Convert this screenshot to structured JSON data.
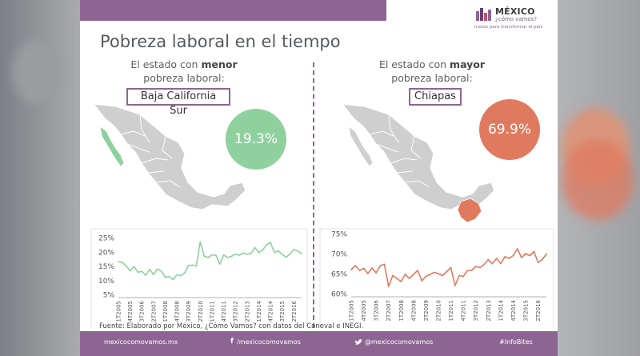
{
  "colors": {
    "purple": "#8c6592",
    "green": "#8fd19e",
    "orange": "#e07a5f",
    "map_gray": "#cfcfcf"
  },
  "logo": {
    "name": "MÉXICO",
    "tagline": "¿cómo vamos?",
    "slogan": "metas para transformar el país"
  },
  "title": "Pobreza laboral en el tiempo",
  "left": {
    "subtitle_pre": "El estado con",
    "subtitle_bold": "menor",
    "subtitle_post": "pobreza laboral:",
    "state": "Baja California Sur",
    "value": "19.3%"
  },
  "right": {
    "subtitle_pre": "El estado con",
    "subtitle_bold": "mayor",
    "subtitle_post": "pobreza laboral:",
    "state": "Chiapas",
    "value": "69.9%"
  },
  "chart_data": [
    {
      "type": "line",
      "categories": [
        "1T2005",
        "4T2005",
        "3T2006",
        "2T2007",
        "1T2008",
        "4T2008",
        "3T2009",
        "2T2010",
        "1T2011",
        "4T2011",
        "3T2012",
        "2T2013",
        "1T2014",
        "4T2014",
        "3T2015",
        "2T2016"
      ],
      "x": [
        "1T2005",
        "2T2005",
        "3T2005",
        "4T2005",
        "1T2006",
        "2T2006",
        "3T2006",
        "4T2006",
        "1T2007",
        "2T2007",
        "3T2007",
        "4T2007",
        "1T2008",
        "2T2008",
        "3T2008",
        "4T2008",
        "1T2009",
        "2T2009",
        "3T2009",
        "4T2009",
        "1T2010",
        "2T2010",
        "3T2010",
        "4T2010",
        "1T2011",
        "2T2011",
        "3T2011",
        "4T2011",
        "1T2012",
        "2T2012",
        "3T2012",
        "4T2012",
        "1T2013",
        "2T2013",
        "3T2013",
        "4T2013",
        "1T2014",
        "2T2014",
        "3T2014",
        "4T2014",
        "1T2015",
        "2T2015",
        "3T2015",
        "4T2015",
        "1T2016",
        "2T2016",
        "3T2016",
        "4T2016"
      ],
      "series": [
        {
          "values": [
            16.5,
            16.3,
            15.0,
            13.3,
            14.8,
            12.8,
            13.1,
            11.8,
            13.8,
            12.0,
            13.9,
            13.2,
            11.0,
            11.3,
            10.2,
            11.9,
            11.6,
            12.6,
            15.2,
            15.3,
            15.0,
            23.5,
            18.5,
            18.0,
            18.9,
            18.8,
            15.7,
            18.9,
            18.0,
            18.4,
            19.2,
            18.8,
            19.5,
            19.2,
            19.4,
            21.5,
            19.8,
            20.6,
            22.5,
            23.3,
            19.8,
            20.3,
            19.2,
            18.1,
            19.2,
            20.8,
            20.3,
            19.3
          ]
        }
      ],
      "yticks": [
        "25%",
        "20%",
        "15%",
        "10%",
        "5%"
      ],
      "ylim": [
        5,
        25
      ]
    },
    {
      "type": "line",
      "categories": [
        "1T2005",
        "4T2005",
        "3T2006",
        "2T2007",
        "1T2008",
        "4T2008",
        "3T2009",
        "2T2010",
        "1T2011",
        "4T2011",
        "3T2012",
        "2T2013",
        "1T2014",
        "4T2014",
        "3T2015",
        "2T2016"
      ],
      "x": [
        "1T2005",
        "2T2005",
        "3T2005",
        "4T2005",
        "1T2006",
        "2T2006",
        "3T2006",
        "4T2006",
        "1T2007",
        "2T2007",
        "3T2007",
        "4T2007",
        "1T2008",
        "2T2008",
        "3T2008",
        "4T2008",
        "1T2009",
        "2T2009",
        "3T2009",
        "4T2009",
        "1T2010",
        "2T2010",
        "3T2010",
        "4T2010",
        "1T2011",
        "2T2011",
        "3T2011",
        "4T2011",
        "1T2012",
        "2T2012",
        "3T2012",
        "4T2012",
        "1T2013",
        "2T2013",
        "3T2013",
        "4T2013",
        "1T2014",
        "2T2014",
        "3T2014",
        "4T2014",
        "1T2015",
        "2T2015",
        "3T2015",
        "4T2015",
        "1T2016",
        "2T2016",
        "3T2016",
        "4T2016"
      ],
      "series": [
        {
          "values": [
            66.0,
            67.0,
            65.8,
            66.3,
            65.0,
            66.4,
            65.2,
            67.0,
            67.3,
            61.8,
            64.5,
            63.8,
            63.0,
            64.8,
            63.8,
            64.8,
            65.8,
            63.2,
            64.3,
            64.8,
            65.3,
            65.0,
            64.5,
            65.5,
            66.5,
            62.0,
            64.5,
            64.3,
            65.8,
            65.8,
            66.8,
            66.5,
            67.3,
            68.5,
            67.5,
            68.8,
            67.5,
            69.2,
            68.8,
            69.5,
            71.2,
            69.0,
            70.0,
            69.5,
            70.5,
            67.8,
            68.5,
            69.9
          ]
        }
      ],
      "yticks": [
        "75%",
        "70%",
        "65%",
        "60%"
      ],
      "ylim": [
        60,
        75
      ]
    }
  ],
  "source": "Fuente: Elaborado por México, ¿Cómo Vamos? con datos del Coneval e INEGI.",
  "footer": {
    "site": "mexicocomovamos.mx",
    "facebook": "/mexicocomovamos",
    "twitter": "@mexicocomovamos",
    "hashtag": "#InfoBites"
  }
}
